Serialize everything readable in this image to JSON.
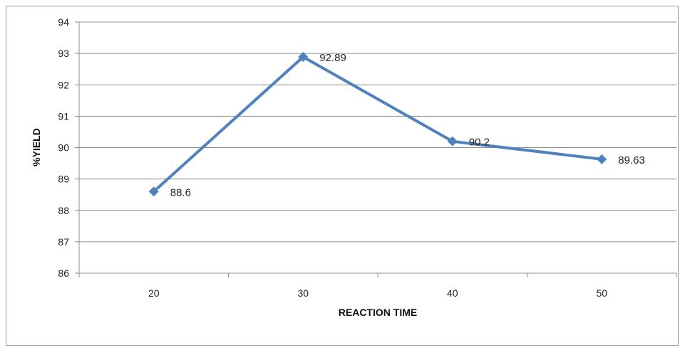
{
  "chart_data": {
    "type": "line",
    "title": "",
    "xlabel": "REACTION TIME",
    "ylabel": "%YIELD",
    "categories": [
      "20",
      "30",
      "40",
      "50"
    ],
    "series": [
      {
        "values": [
          88.6,
          92.89,
          90.2,
          89.63
        ]
      }
    ],
    "data_labels": [
      "88.6",
      "92.89",
      "90.2",
      "89.63"
    ],
    "ylim": [
      86,
      94
    ],
    "yticks": [
      "86",
      "87",
      "88",
      "89",
      "90",
      "91",
      "92",
      "93",
      "94"
    ],
    "grid": true,
    "legend": "none",
    "line_color": "#4f81bd",
    "grid_color": "#8c8c8c"
  }
}
